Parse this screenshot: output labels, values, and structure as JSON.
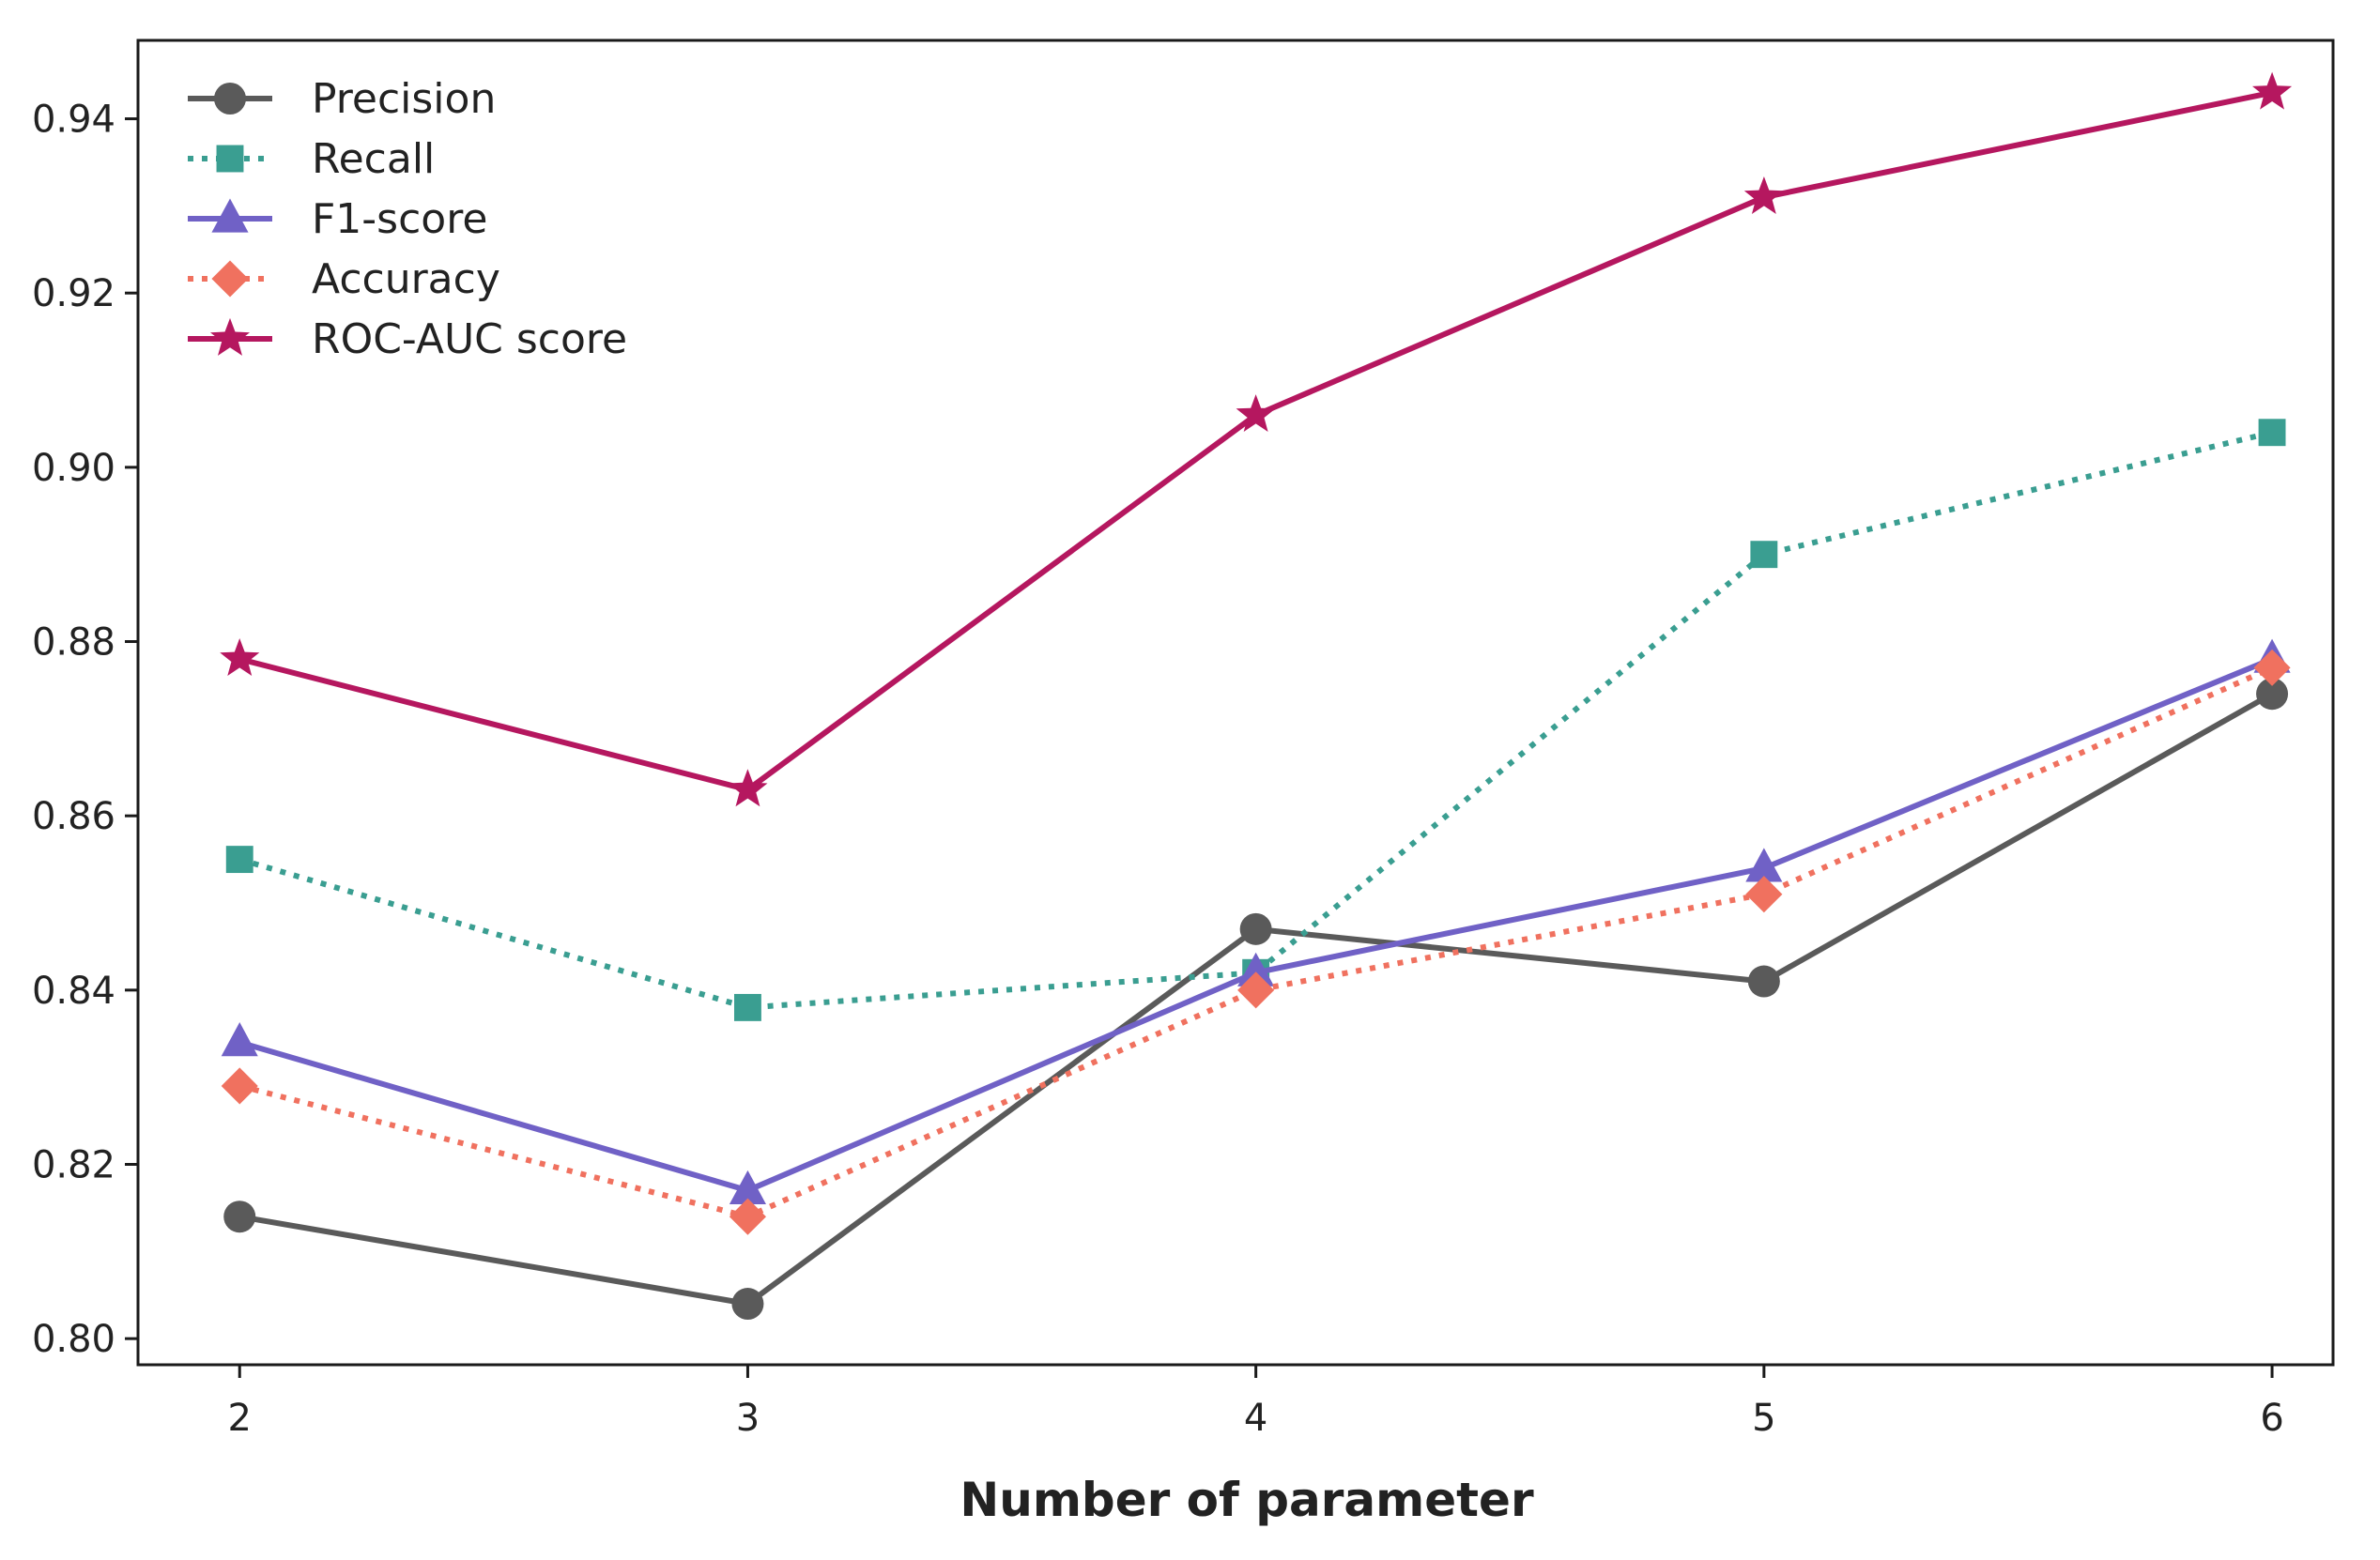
{
  "chart_data": {
    "type": "line",
    "title": "",
    "xlabel": "Number of parameter",
    "ylabel": "",
    "x": [
      2,
      3,
      4,
      5,
      6
    ],
    "x_tick_labels": [
      "2",
      "3",
      "4",
      "5",
      "6"
    ],
    "xlim": [
      1.8,
      6.12
    ],
    "ylim": [
      0.797,
      0.949
    ],
    "y_ticks": [
      0.8,
      0.82,
      0.84,
      0.86,
      0.88,
      0.9,
      0.92,
      0.94
    ],
    "y_tick_labels": [
      "0.80",
      "0.82",
      "0.84",
      "0.86",
      "0.88",
      "0.90",
      "0.92",
      "0.94"
    ],
    "grid": false,
    "legend_position": "top-left",
    "series": [
      {
        "name": "Precision",
        "values": [
          0.814,
          0.804,
          0.847,
          0.841,
          0.874
        ],
        "color": "#5a5a5a",
        "line_style": "solid",
        "marker": "circle"
      },
      {
        "name": "Recall",
        "values": [
          0.855,
          0.838,
          0.842,
          0.89,
          0.904
        ],
        "color": "#3a9e91",
        "line_style": "dotted",
        "marker": "square"
      },
      {
        "name": "F1-score",
        "values": [
          0.834,
          0.817,
          0.842,
          0.854,
          0.878
        ],
        "color": "#7061c6",
        "line_style": "solid",
        "marker": "triangle"
      },
      {
        "name": "Accuracy",
        "values": [
          0.829,
          0.814,
          0.84,
          0.851,
          0.877
        ],
        "color": "#f0715f",
        "line_style": "dotted",
        "marker": "diamond"
      },
      {
        "name": "ROC-AUC score",
        "values": [
          0.878,
          0.863,
          0.906,
          0.931,
          0.943
        ],
        "color": "#b5175f",
        "line_style": "solid",
        "marker": "star"
      }
    ]
  }
}
